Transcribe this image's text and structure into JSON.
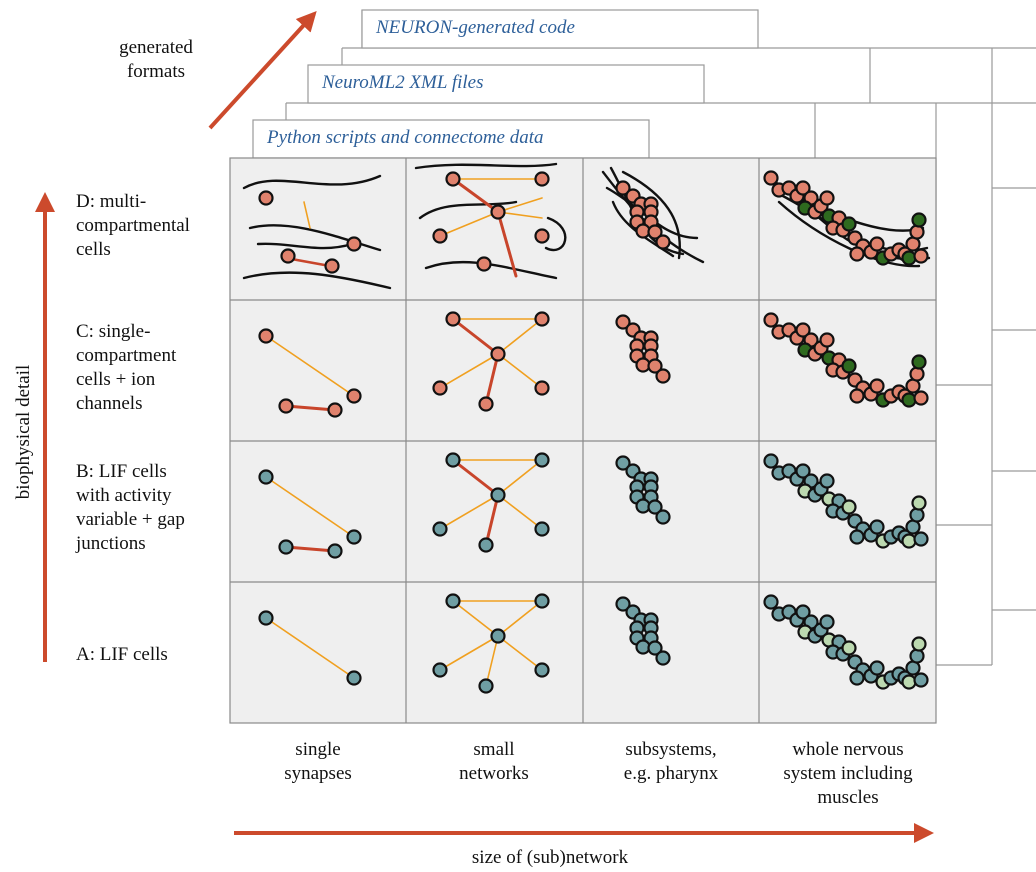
{
  "formats_label": "generated\nformats",
  "formats": [
    {
      "label": "NEURON-generated code"
    },
    {
      "label": "NeuroML2 XML files"
    },
    {
      "label": "Python scripts and connectome data"
    }
  ],
  "y_axis_label": "biophysical detail",
  "x_axis_label": "size of (sub)network",
  "rows": [
    {
      "label": "D: multi-\ncompartmental\ncells",
      "cell_color": "#e0826d",
      "alt_color": "#2e6a1f"
    },
    {
      "label": "C: single-\ncompartment\ncells + ion\nchannels",
      "cell_color": "#e0826d",
      "alt_color": "#2e6a1f"
    },
    {
      "label": "B: LIF cells\nwith activity\nvariable + gap\njunctions",
      "cell_color": "#6f9ea3",
      "alt_color": "#bcd9b0"
    },
    {
      "label": "A: LIF cells",
      "cell_color": "#6f9ea3",
      "alt_color": "#bcd9b0"
    }
  ],
  "columns": [
    {
      "label": "single\nsynapses"
    },
    {
      "label": "small\nnetworks"
    },
    {
      "label": "subsystems,\ne.g. pharynx"
    },
    {
      "label": "whole nervous\nsystem including\nmuscles"
    }
  ],
  "colors": {
    "arrow": "#cc4a2c",
    "chemical_synapse": "#f0a020",
    "gap_junction": "#c8452b",
    "panel_bg": "#efefef",
    "format_text": "#2d5f99"
  }
}
